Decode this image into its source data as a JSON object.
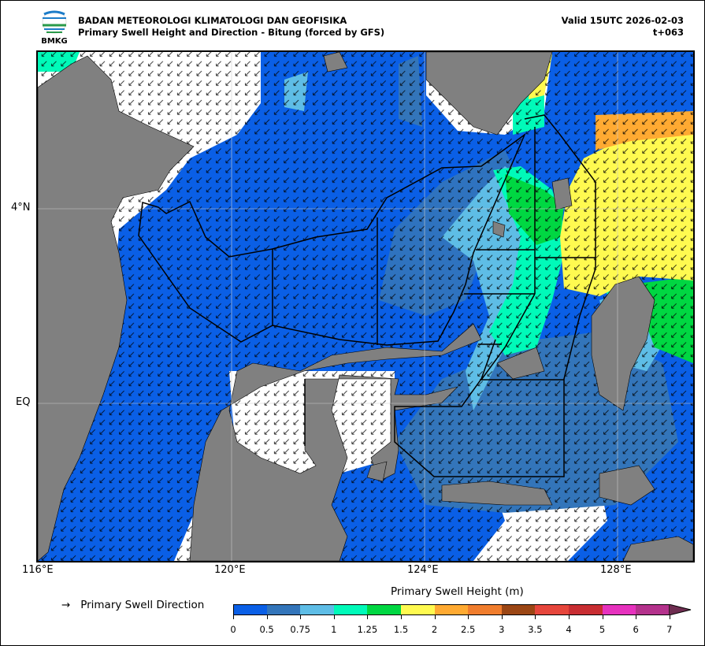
{
  "header": {
    "agency": "BADAN METEOROLOGI KLIMATOLOGI DAN GEOFISIKA",
    "title": "Primary Swell Height and Direction - Bitung (forced by GFS)",
    "valid": "Valid 15UTC 2026-02-03",
    "lead": "t+063",
    "logo_text": "BMKG"
  },
  "axes": {
    "x_ticks": [
      "116°E",
      "120°E",
      "124°E",
      "128°E"
    ],
    "y_ticks": [
      "4°N",
      "EQ"
    ]
  },
  "legend": {
    "arrow": "→",
    "label": "Primary Swell Direction"
  },
  "colorbar": {
    "title": "Primary Swell Height (m)",
    "labels": [
      "0",
      "0.5",
      "0.75",
      "1",
      "1.25",
      "1.5",
      "2",
      "2.5",
      "3",
      "3.5",
      "4",
      "5",
      "6",
      "7"
    ],
    "colors": [
      "#0a5fe6",
      "#3375ba",
      "#5ebde6",
      "#00fab9",
      "#00d742",
      "#fffa50",
      "#ffaa32",
      "#f07d2d",
      "#9b4614",
      "#e6463c",
      "#c82d32",
      "#e632be",
      "#b4328c",
      "#6e2d50"
    ]
  },
  "colors": {
    "land": "#808080",
    "ocean_low": "#0a5fe6"
  }
}
